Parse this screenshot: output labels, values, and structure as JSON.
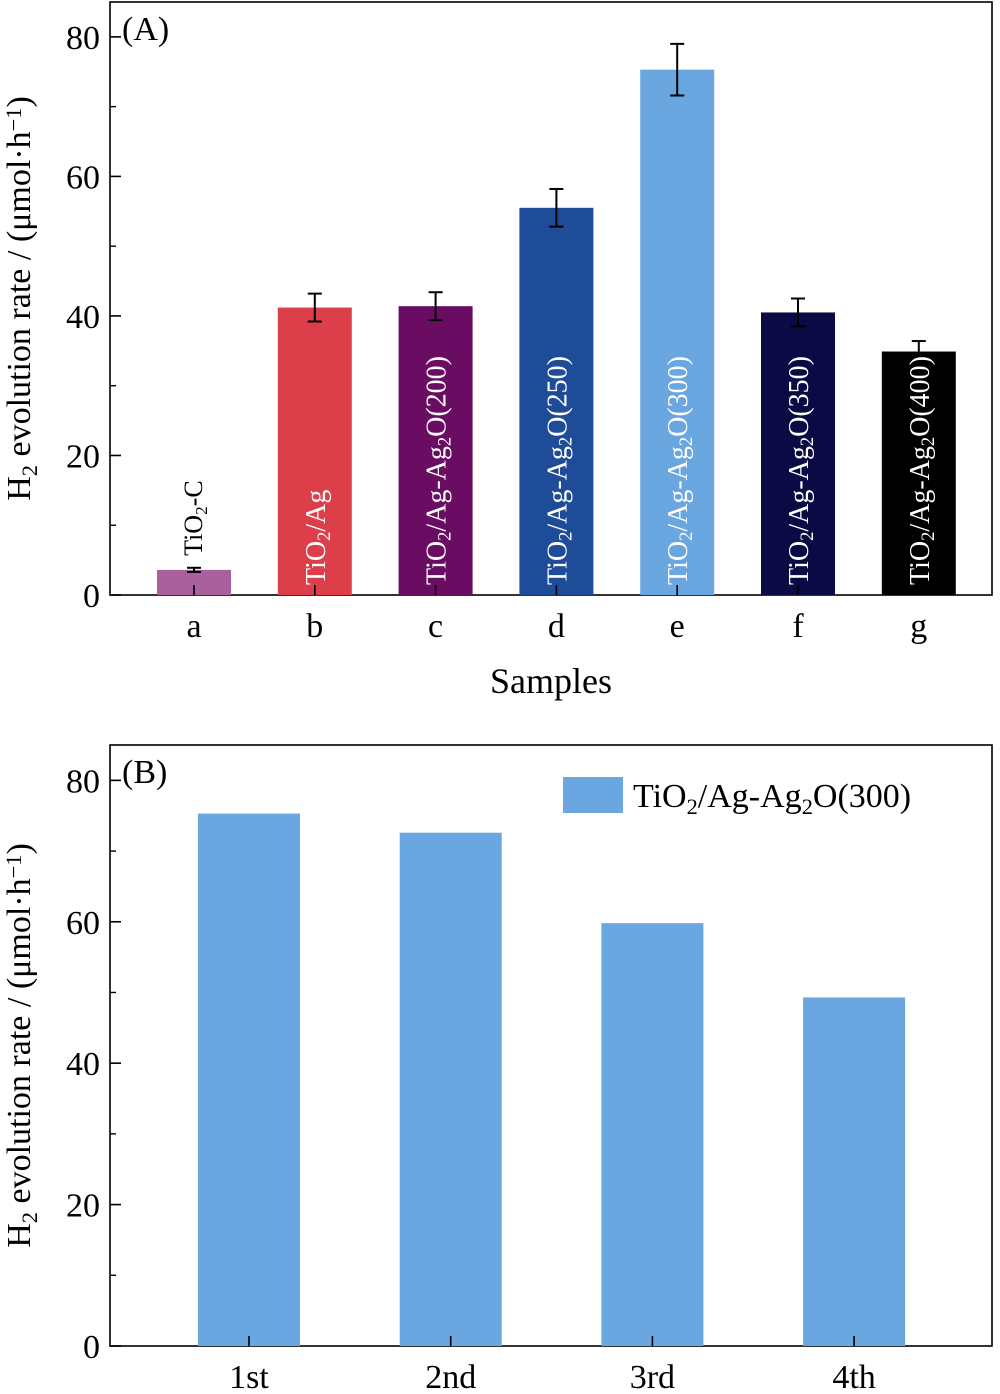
{
  "chart_data": [
    {
      "type": "bar",
      "panel_label": "(A)",
      "categories": [
        "a",
        "b",
        "c",
        "d",
        "e",
        "f",
        "g"
      ],
      "values": [
        3.6,
        41.2,
        41.4,
        55.5,
        75.3,
        40.5,
        34.9
      ],
      "errors": [
        0.3,
        2.0,
        2.0,
        2.7,
        3.7,
        2.0,
        1.5
      ],
      "bar_labels": [
        "TiO₂-C",
        "TiO₂/Ag",
        "TiO₂/Ag-Ag₂O(200)",
        "TiO₂/Ag-Ag₂O(250)",
        "TiO₂/Ag-Ag₂O(300)",
        "TiO₂/Ag-Ag₂O(350)",
        "TiO₂/Ag-Ag₂O(400)"
      ],
      "colors": [
        "#A8619C",
        "#DD3F4A",
        "#6A0D62",
        "#1F4C99",
        "#6AA6DF",
        "#0B0A45",
        "#000000"
      ],
      "xlabel": "Samples",
      "ylabel": "H₂ evolution rate / (μmol·h⁻¹)",
      "ylim": [
        0,
        85
      ],
      "yticks": [
        0,
        20,
        40,
        60,
        80
      ],
      "grid": false
    },
    {
      "type": "bar",
      "panel_label": "(B)",
      "categories": [
        "1st",
        "2nd",
        "3rd",
        "4th"
      ],
      "series": [
        {
          "name": "TiO₂/Ag-Ag₂O(300)",
          "values": [
            75.3,
            72.6,
            59.8,
            49.3
          ]
        }
      ],
      "color": "#6AA6DF",
      "xlabel": "",
      "ylabel": "H₂ evolution rate / (μmol·h⁻¹)",
      "ylim": [
        0,
        85
      ],
      "yticks": [
        0,
        20,
        40,
        60,
        80
      ],
      "legend": "top-right",
      "grid": false
    }
  ]
}
